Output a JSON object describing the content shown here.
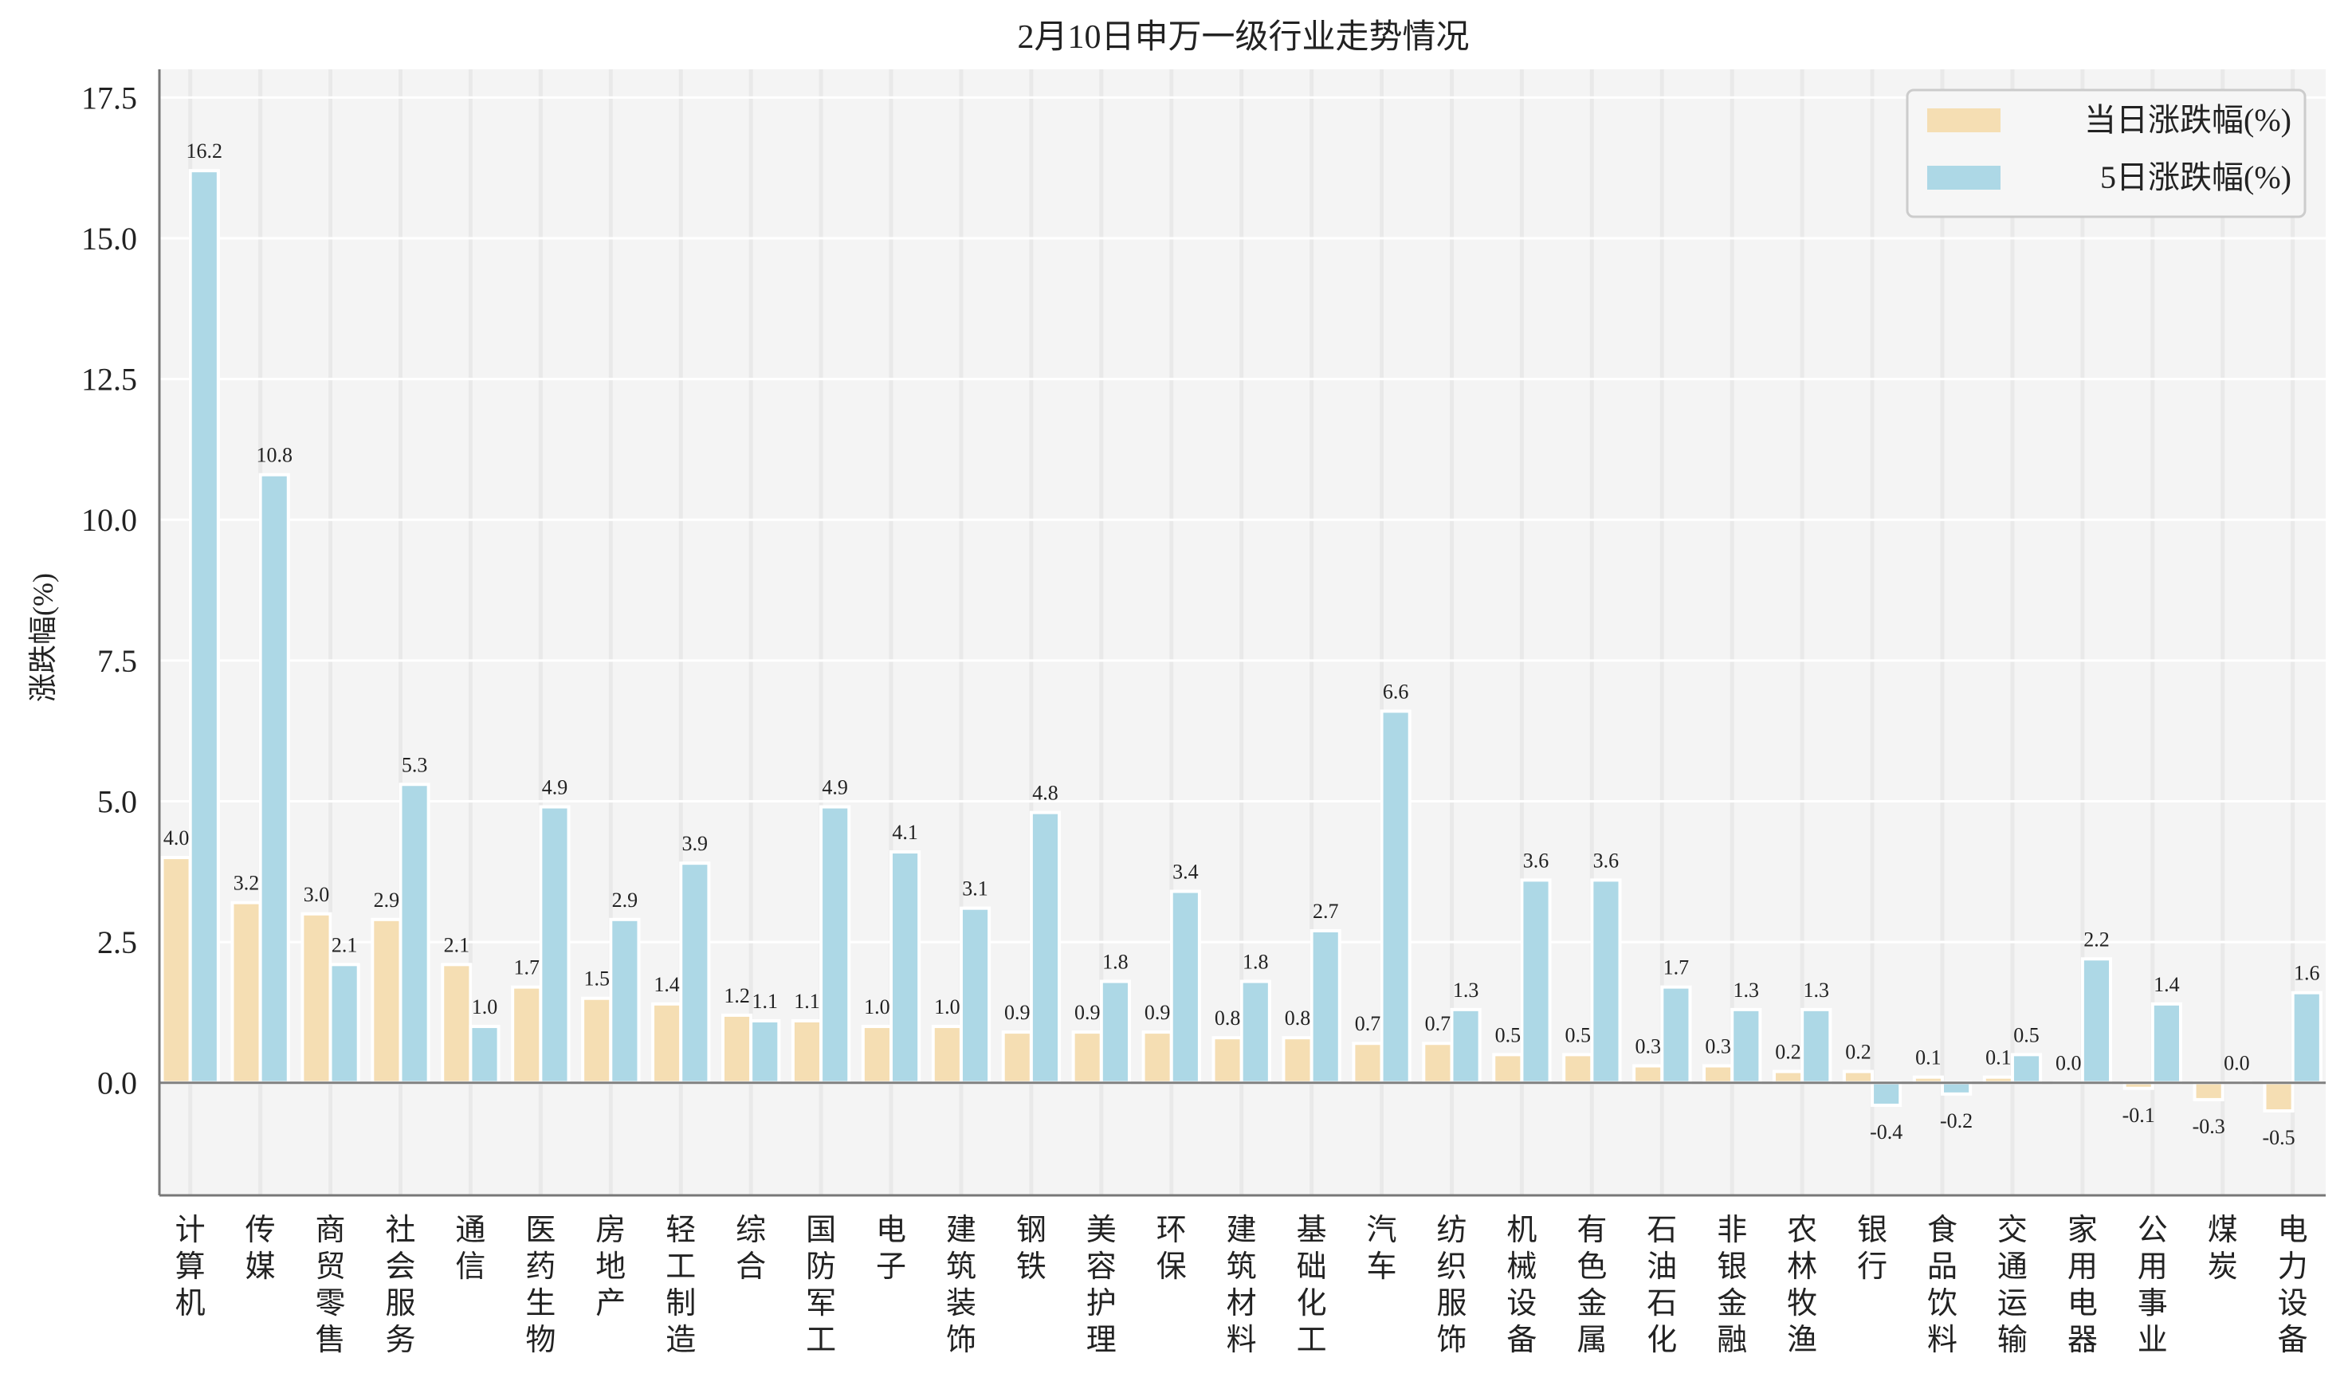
{
  "chart_data": {
    "type": "bar",
    "title": "2月10日申万一级行业走势情况",
    "xlabel": "",
    "ylabel": "涨跌幅(%)",
    "ylim": [
      -2.0,
      18.0
    ],
    "yticks": [
      0.0,
      2.5,
      5.0,
      7.5,
      10.0,
      12.5,
      15.0,
      17.5
    ],
    "grid": true,
    "legend_position": "top-right",
    "categories": [
      "计算机",
      "传媒",
      "商贸零售",
      "社会服务",
      "通信",
      "医药生物",
      "房地产",
      "轻工制造",
      "综合",
      "国防军工",
      "电子",
      "建筑装饰",
      "钢铁",
      "美容护理",
      "环保",
      "建筑材料",
      "基础化工",
      "汽车",
      "纺织服饰",
      "机械设备",
      "有色金属",
      "石油石化",
      "非银金融",
      "农林牧渔",
      "银行",
      "食品饮料",
      "交通运输",
      "家用电器",
      "公用事业",
      "煤炭",
      "电力设备"
    ],
    "series": [
      {
        "name": "当日涨跌幅(%)",
        "color": "#F5DEB3",
        "values": [
          4.0,
          3.2,
          3.0,
          2.9,
          2.1,
          1.7,
          1.5,
          1.4,
          1.2,
          1.1,
          1.0,
          1.0,
          0.9,
          0.9,
          0.9,
          0.8,
          0.8,
          0.7,
          0.7,
          0.5,
          0.5,
          0.3,
          0.3,
          0.2,
          0.2,
          0.1,
          0.1,
          0.0,
          -0.1,
          -0.3,
          -0.5
        ]
      },
      {
        "name": "5日涨跌幅(%)",
        "color": "#ADD8E6",
        "values": [
          16.2,
          10.8,
          2.1,
          5.3,
          1.0,
          4.9,
          2.9,
          3.9,
          1.1,
          4.9,
          4.1,
          3.1,
          4.8,
          1.8,
          3.4,
          1.8,
          2.7,
          6.6,
          1.3,
          3.6,
          3.6,
          1.7,
          1.3,
          1.3,
          -0.4,
          -0.2,
          0.5,
          2.2,
          1.4,
          0.0,
          1.6
        ]
      }
    ]
  }
}
